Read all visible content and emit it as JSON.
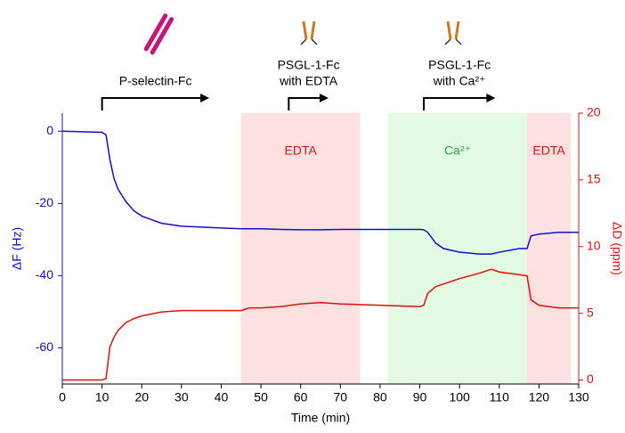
{
  "chart_data": {
    "type": "line",
    "x_label": "Time (min)",
    "y_label": "ΔF (Hz)",
    "y2_label": "ΔD (ppm)",
    "x": [
      0,
      10,
      11,
      12,
      13,
      14,
      16,
      18,
      20,
      25,
      30,
      40,
      45,
      47,
      50,
      55,
      60,
      65,
      70,
      80,
      90,
      91,
      92,
      94,
      96,
      100,
      105,
      108,
      110,
      115,
      117,
      118,
      120,
      125,
      130
    ],
    "series": [
      {
        "name": "ΔF",
        "color": "#1010cc",
        "axis": "y",
        "values": [
          0,
          -0.3,
          -1,
          -8,
          -13,
          -16,
          -19.5,
          -22,
          -23.5,
          -25.5,
          -26.3,
          -26.8,
          -27,
          -27,
          -27,
          -27.2,
          -27.3,
          -27.3,
          -27.2,
          -27.2,
          -27.2,
          -27.3,
          -28,
          -31,
          -32.5,
          -33.5,
          -34,
          -34,
          -33.5,
          -32.5,
          -32.5,
          -29,
          -28.5,
          -28,
          -28
        ]
      },
      {
        "name": "ΔD",
        "color": "#dd1111",
        "axis": "y2",
        "values": [
          0,
          0,
          0.1,
          2.5,
          3.2,
          3.7,
          4.3,
          4.6,
          4.8,
          5.1,
          5.2,
          5.2,
          5.2,
          5.4,
          5.4,
          5.5,
          5.7,
          5.8,
          5.7,
          5.6,
          5.5,
          5.6,
          6.5,
          7,
          7.2,
          7.6,
          8,
          8.3,
          8.1,
          7.9,
          7.8,
          6,
          5.6,
          5.4,
          5.4
        ]
      }
    ],
    "regions": [
      {
        "label": "EDTA",
        "start": 45,
        "end": 75,
        "color": "#fde0e0",
        "text_color": "#dd1111"
      },
      {
        "label": "Ca²⁺",
        "start": 82,
        "end": 117,
        "color": "#e2fbe2",
        "text_color": "#22aa44"
      },
      {
        "label": "EDTA",
        "start": 117,
        "end": 128,
        "color": "#fde0e0",
        "text_color": "#dd1111"
      }
    ],
    "annotations": [
      {
        "lines": [
          "P-selectin-Fc"
        ],
        "start": 10,
        "end": 37
      },
      {
        "lines": [
          "PSGL-1-Fc",
          "with EDTA"
        ],
        "start": 57,
        "end": 67
      },
      {
        "lines": [
          "PSGL-1-Fc",
          "with Ca²⁺"
        ],
        "start": 91,
        "end": 109
      }
    ],
    "xlim": [
      0,
      130
    ],
    "xticks": [
      0,
      10,
      20,
      30,
      40,
      50,
      60,
      70,
      80,
      90,
      100,
      110,
      120,
      130
    ],
    "ylim": [
      -70,
      5
    ],
    "yticks": [
      -60,
      -40,
      -20,
      0
    ],
    "y2lim": [
      -0.3,
      20
    ],
    "y2ticks": [
      0,
      5,
      10,
      15,
      20
    ]
  }
}
